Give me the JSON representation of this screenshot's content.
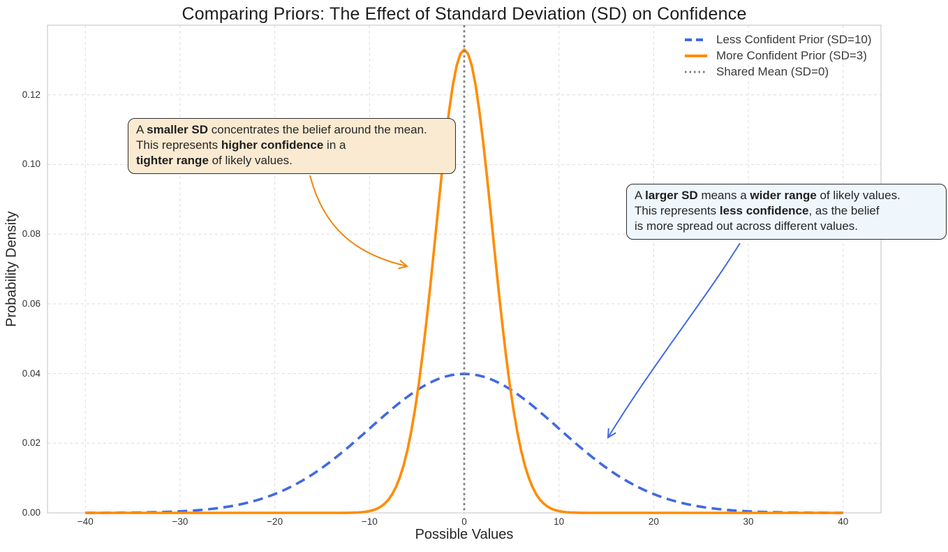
{
  "title": "Comparing Priors: The Effect of Standard Deviation (SD) on Confidence",
  "chart_data": {
    "type": "line",
    "title": "Comparing Priors: The Effect of Standard Deviation (SD) on Confidence",
    "xlabel": "Possible Values",
    "ylabel": "Probability Density",
    "xlim": [
      -44,
      44
    ],
    "ylim": [
      0,
      0.14
    ],
    "x_tick_values": [
      -40,
      -30,
      -20,
      -10,
      0,
      10,
      20,
      30,
      40
    ],
    "x_tick_labels": [
      "−40",
      "−30",
      "−20",
      "−10",
      "0",
      "10",
      "20",
      "30",
      "40"
    ],
    "y_tick_values": [
      0,
      0.02,
      0.04,
      0.06,
      0.08,
      0.1,
      0.12
    ],
    "y_tick_labels": [
      "0.00",
      "0.02",
      "0.04",
      "0.06",
      "0.08",
      "0.10",
      "0.12"
    ],
    "grid": {
      "visible": true,
      "style": "dashed",
      "color": "#DCDCDC"
    },
    "legend": {
      "position": "upper-right",
      "frame": false
    },
    "series": [
      {
        "name": "Less Confident Prior (SD=10)",
        "curve": "normal_pdf",
        "mean": 0,
        "sd": 10,
        "peak_density": 0.0399,
        "color": "#4169E1",
        "line_style": "dashed",
        "x_range": [
          -40,
          40
        ],
        "sample_points": {
          "x": [
            -40,
            -30,
            -20,
            -10,
            0,
            10,
            20,
            30,
            40
          ],
          "y": [
            1.34e-05,
            0.000443,
            0.0054,
            0.0242,
            0.0399,
            0.0242,
            0.0054,
            0.000443,
            1.34e-05
          ]
        }
      },
      {
        "name": "More Confident Prior (SD=3)",
        "curve": "normal_pdf",
        "mean": 0,
        "sd": 3,
        "peak_density": 0.133,
        "color": "#FF8C00",
        "line_style": "solid",
        "x_range": [
          -40,
          40
        ],
        "sample_points": {
          "x": [
            -10,
            -8,
            -6,
            -4,
            -2,
            0,
            2,
            4,
            6,
            8,
            10
          ],
          "y": [
            0.000514,
            0.0038,
            0.018,
            0.0547,
            0.1065,
            0.133,
            0.1065,
            0.0547,
            0.018,
            0.0038,
            0.000514
          ]
        }
      },
      {
        "name": "Shared Mean (SD=0)",
        "curve": "vline",
        "x": 0,
        "color": "#7F7F7F",
        "line_style": "dotted"
      }
    ]
  },
  "annotations": [
    {
      "id": "smaller-sd-note",
      "fill": "#FAEAD1",
      "border": "#2D2D2D",
      "arrow_color": "#F0860B",
      "segments": [
        {
          "b": false,
          "t": "A "
        },
        {
          "b": true,
          "t": "smaller SD"
        },
        {
          "b": false,
          "t": " concentrates the belief around the mean.\nThis represents "
        },
        {
          "b": true,
          "t": "higher confidence"
        },
        {
          "b": false,
          "t": " in a\n"
        },
        {
          "b": true,
          "t": "tighter range"
        },
        {
          "b": false,
          "t": " of likely values."
        }
      ]
    },
    {
      "id": "larger-sd-note",
      "fill": "#EFF6FC",
      "border": "#2D2D2D",
      "arrow_color": "#4169E1",
      "segments": [
        {
          "b": false,
          "t": "A "
        },
        {
          "b": true,
          "t": "larger SD"
        },
        {
          "b": false,
          "t": " means a "
        },
        {
          "b": true,
          "t": "wider range"
        },
        {
          "b": false,
          "t": " of likely values.\nThis represents "
        },
        {
          "b": true,
          "t": "less confidence"
        },
        {
          "b": false,
          "t": ", as the belief\nis more spread out across different values."
        }
      ]
    }
  ]
}
